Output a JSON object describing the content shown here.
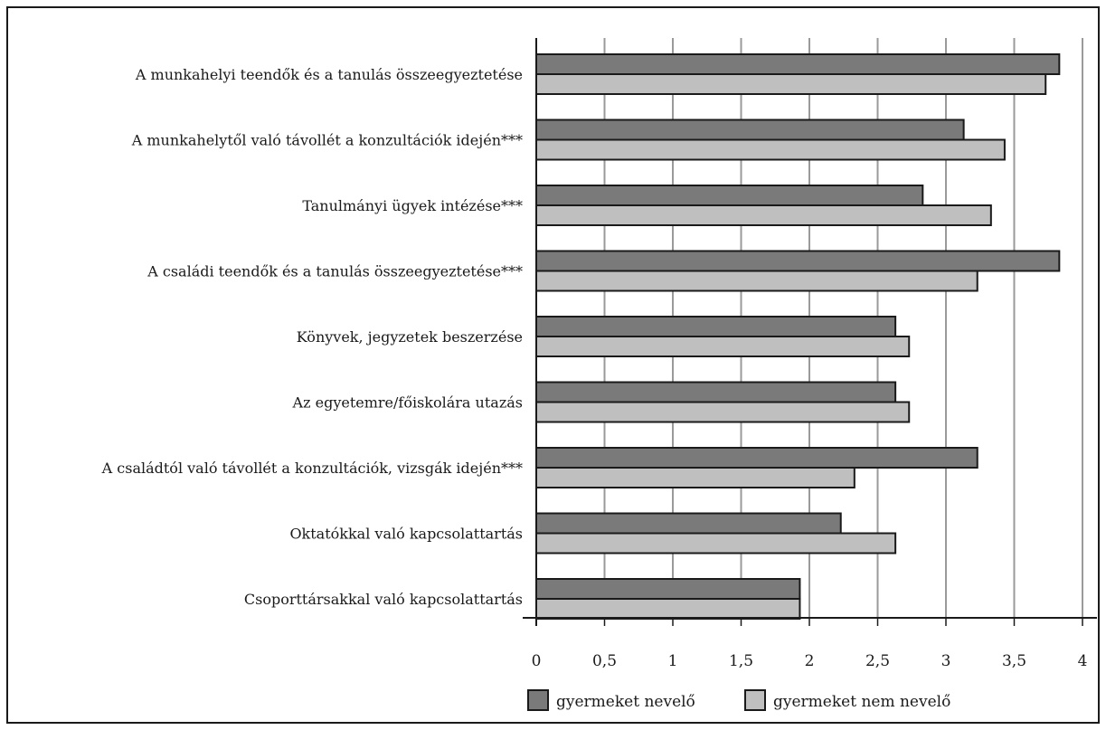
{
  "chart_data": {
    "type": "bar",
    "orientation": "horizontal",
    "categories": [
      "A munkahelyi teendők és a tanulás összeegyeztetése",
      "A munkahelytől való távollét  a konzultációk idején***",
      "Tanulmányi ügyek intézése***",
      "A családi teendők és a tanulás összeegyeztetése***",
      "Könyvek, jegyzetek beszerzése",
      "Az egyetemre/főiskolára utazás",
      "A családtól való távollét a konzultációk, vizsgák idején***",
      "Oktatókkal való kapcsolattartás",
      "Csoporttársakkal való kapcsolattartás"
    ],
    "series": [
      {
        "name": "gyermeket nevelő",
        "color": "#7a7a7a",
        "values": [
          3.83,
          3.13,
          2.83,
          3.83,
          2.63,
          2.63,
          3.23,
          2.23,
          1.93
        ]
      },
      {
        "name": "gyermeket nem nevelő",
        "color": "#bfbfbf",
        "values": [
          3.73,
          3.43,
          3.33,
          3.23,
          2.73,
          2.73,
          2.33,
          2.63,
          1.93
        ]
      }
    ],
    "xticks": [
      "0",
      "0,5",
      "1",
      "1,5",
      "2",
      "2,5",
      "3",
      "3,5",
      "4"
    ],
    "xlim": [
      0,
      4
    ],
    "grid": "vertical",
    "legend": "bottom"
  }
}
